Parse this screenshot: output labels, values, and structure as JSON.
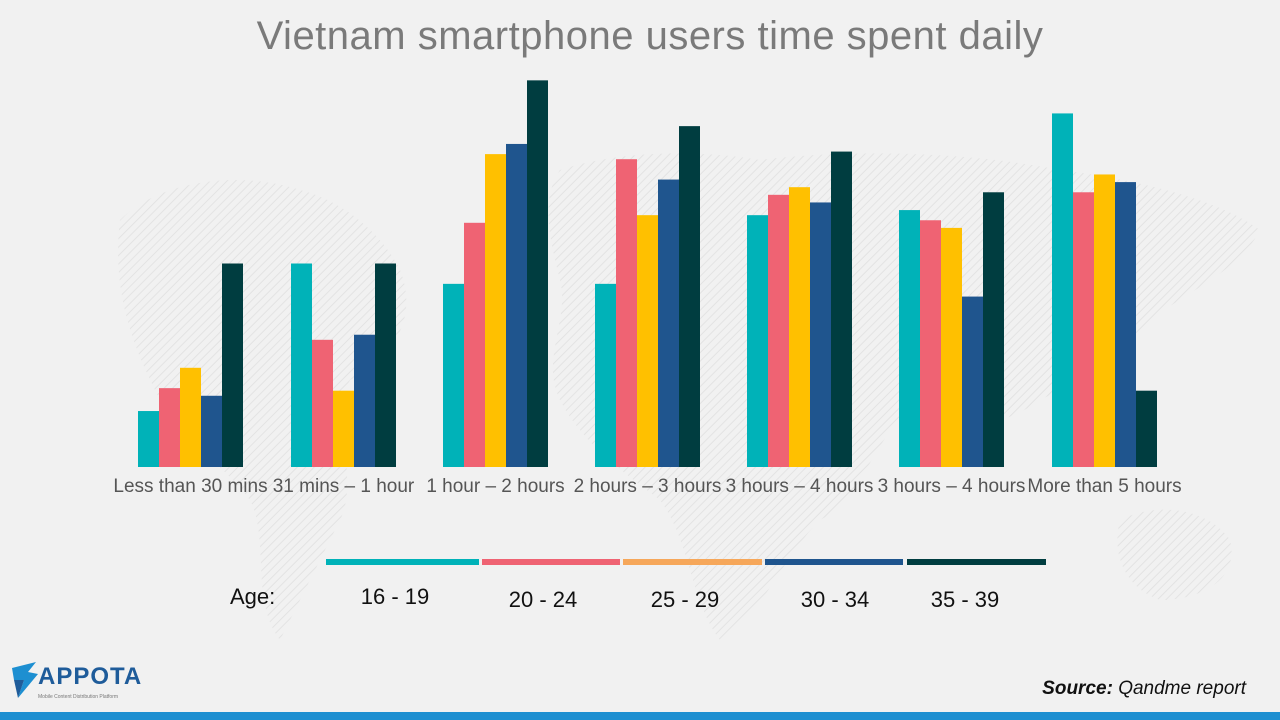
{
  "chart_data": {
    "type": "bar",
    "title": "Vietnam smartphone users time spent daily",
    "categories": [
      "Less than 30 mins",
      "31 mins – 1 hour",
      "1 hour – 2 hours",
      "2 hours – 3 hours",
      "3 hours – 4 hours",
      "3 hours – 4 hours",
      "More than 5 hours"
    ],
    "series": [
      {
        "name": "16 - 19",
        "color": "#00b2b8",
        "values": [
          11,
          40,
          36,
          36,
          49.5,
          50.5,
          69.5
        ]
      },
      {
        "name": "20 - 24",
        "color": "#ef6373",
        "values": [
          15.5,
          25,
          48,
          60.5,
          53.5,
          48.5,
          54
        ]
      },
      {
        "name": "25 - 29",
        "color": "#ffc000",
        "values": [
          19.5,
          15,
          61.5,
          49.5,
          55,
          47,
          57.5
        ]
      },
      {
        "name": "30 - 34",
        "color": "#1f558e",
        "values": [
          14,
          26,
          63.5,
          56.5,
          52,
          33.5,
          56
        ]
      },
      {
        "name": "35 - 39",
        "color": "#003d40",
        "values": [
          40,
          40,
          76,
          67,
          62,
          54,
          15
        ]
      }
    ],
    "legend_title": "Age:",
    "legend_line_colors": [
      "#00b2b8",
      "#ef6373",
      "#f6a75a",
      "#1f558e",
      "#003d40"
    ],
    "ylim": [
      0,
      80
    ],
    "grid": false,
    "yaxis_visible": false
  },
  "footer": {
    "source_label": "Source:",
    "source_text": "Qandme report",
    "logo_text": "APPOTA",
    "logo_sub": "Mobile Content Distribution Platform",
    "bar_color": "#1d8fd1"
  }
}
